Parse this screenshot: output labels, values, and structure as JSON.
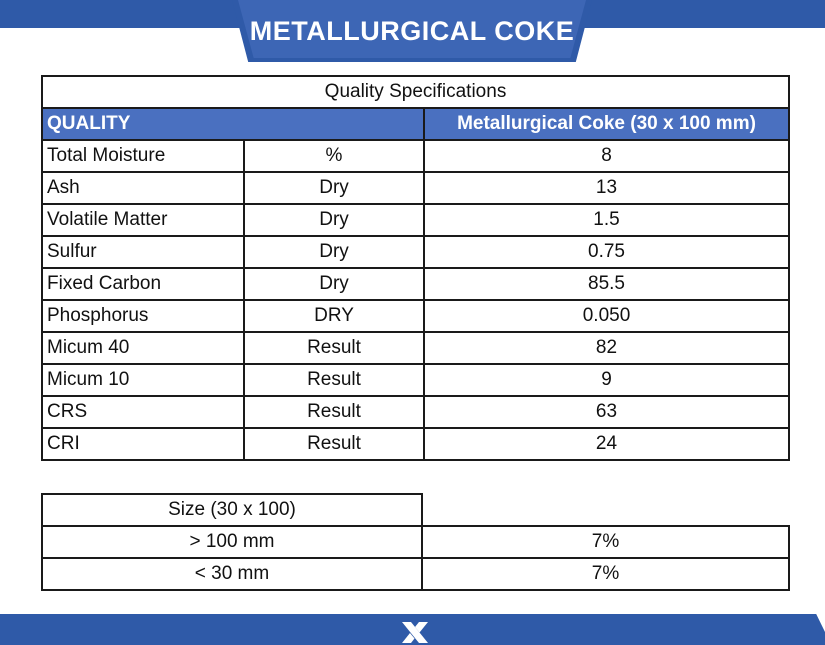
{
  "header": {
    "title": "METALLURGICAL COKE"
  },
  "spec_table": {
    "caption": "Quality Specifications",
    "header": {
      "quality": "QUALITY",
      "product": "Metallurgical Coke (30 x 100 mm)"
    },
    "rows": [
      {
        "parameter": "Total Moisture",
        "basis": "%",
        "value": "8"
      },
      {
        "parameter": "Ash",
        "basis": "Dry",
        "value": "13"
      },
      {
        "parameter": "Volatile Matter",
        "basis": "Dry",
        "value": "1.5"
      },
      {
        "parameter": "Sulfur",
        "basis": "Dry",
        "value": "0.75"
      },
      {
        "parameter": "Fixed Carbon",
        "basis": "Dry",
        "value": "85.5"
      },
      {
        "parameter": "Phosphorus",
        "basis": "DRY",
        "value": "0.050"
      },
      {
        "parameter": "Micum 40",
        "basis": "Result",
        "value": "82"
      },
      {
        "parameter": "Micum 10",
        "basis": "Result",
        "value": "9"
      },
      {
        "parameter": "CRS",
        "basis": "Result",
        "value": "63"
      },
      {
        "parameter": "CRI",
        "basis": "Result",
        "value": "24"
      }
    ]
  },
  "size_table": {
    "header": "Size (30 x 100)",
    "rows": [
      {
        "label": "> 100 mm",
        "value": "7%"
      },
      {
        "label": "< 30 mm",
        "value": "7%"
      }
    ]
  },
  "footer": {
    "logo_icon": "x-logo-icon"
  },
  "colors": {
    "brand_blue": "#2f5aa8",
    "header_blue": "#4a70c0"
  }
}
